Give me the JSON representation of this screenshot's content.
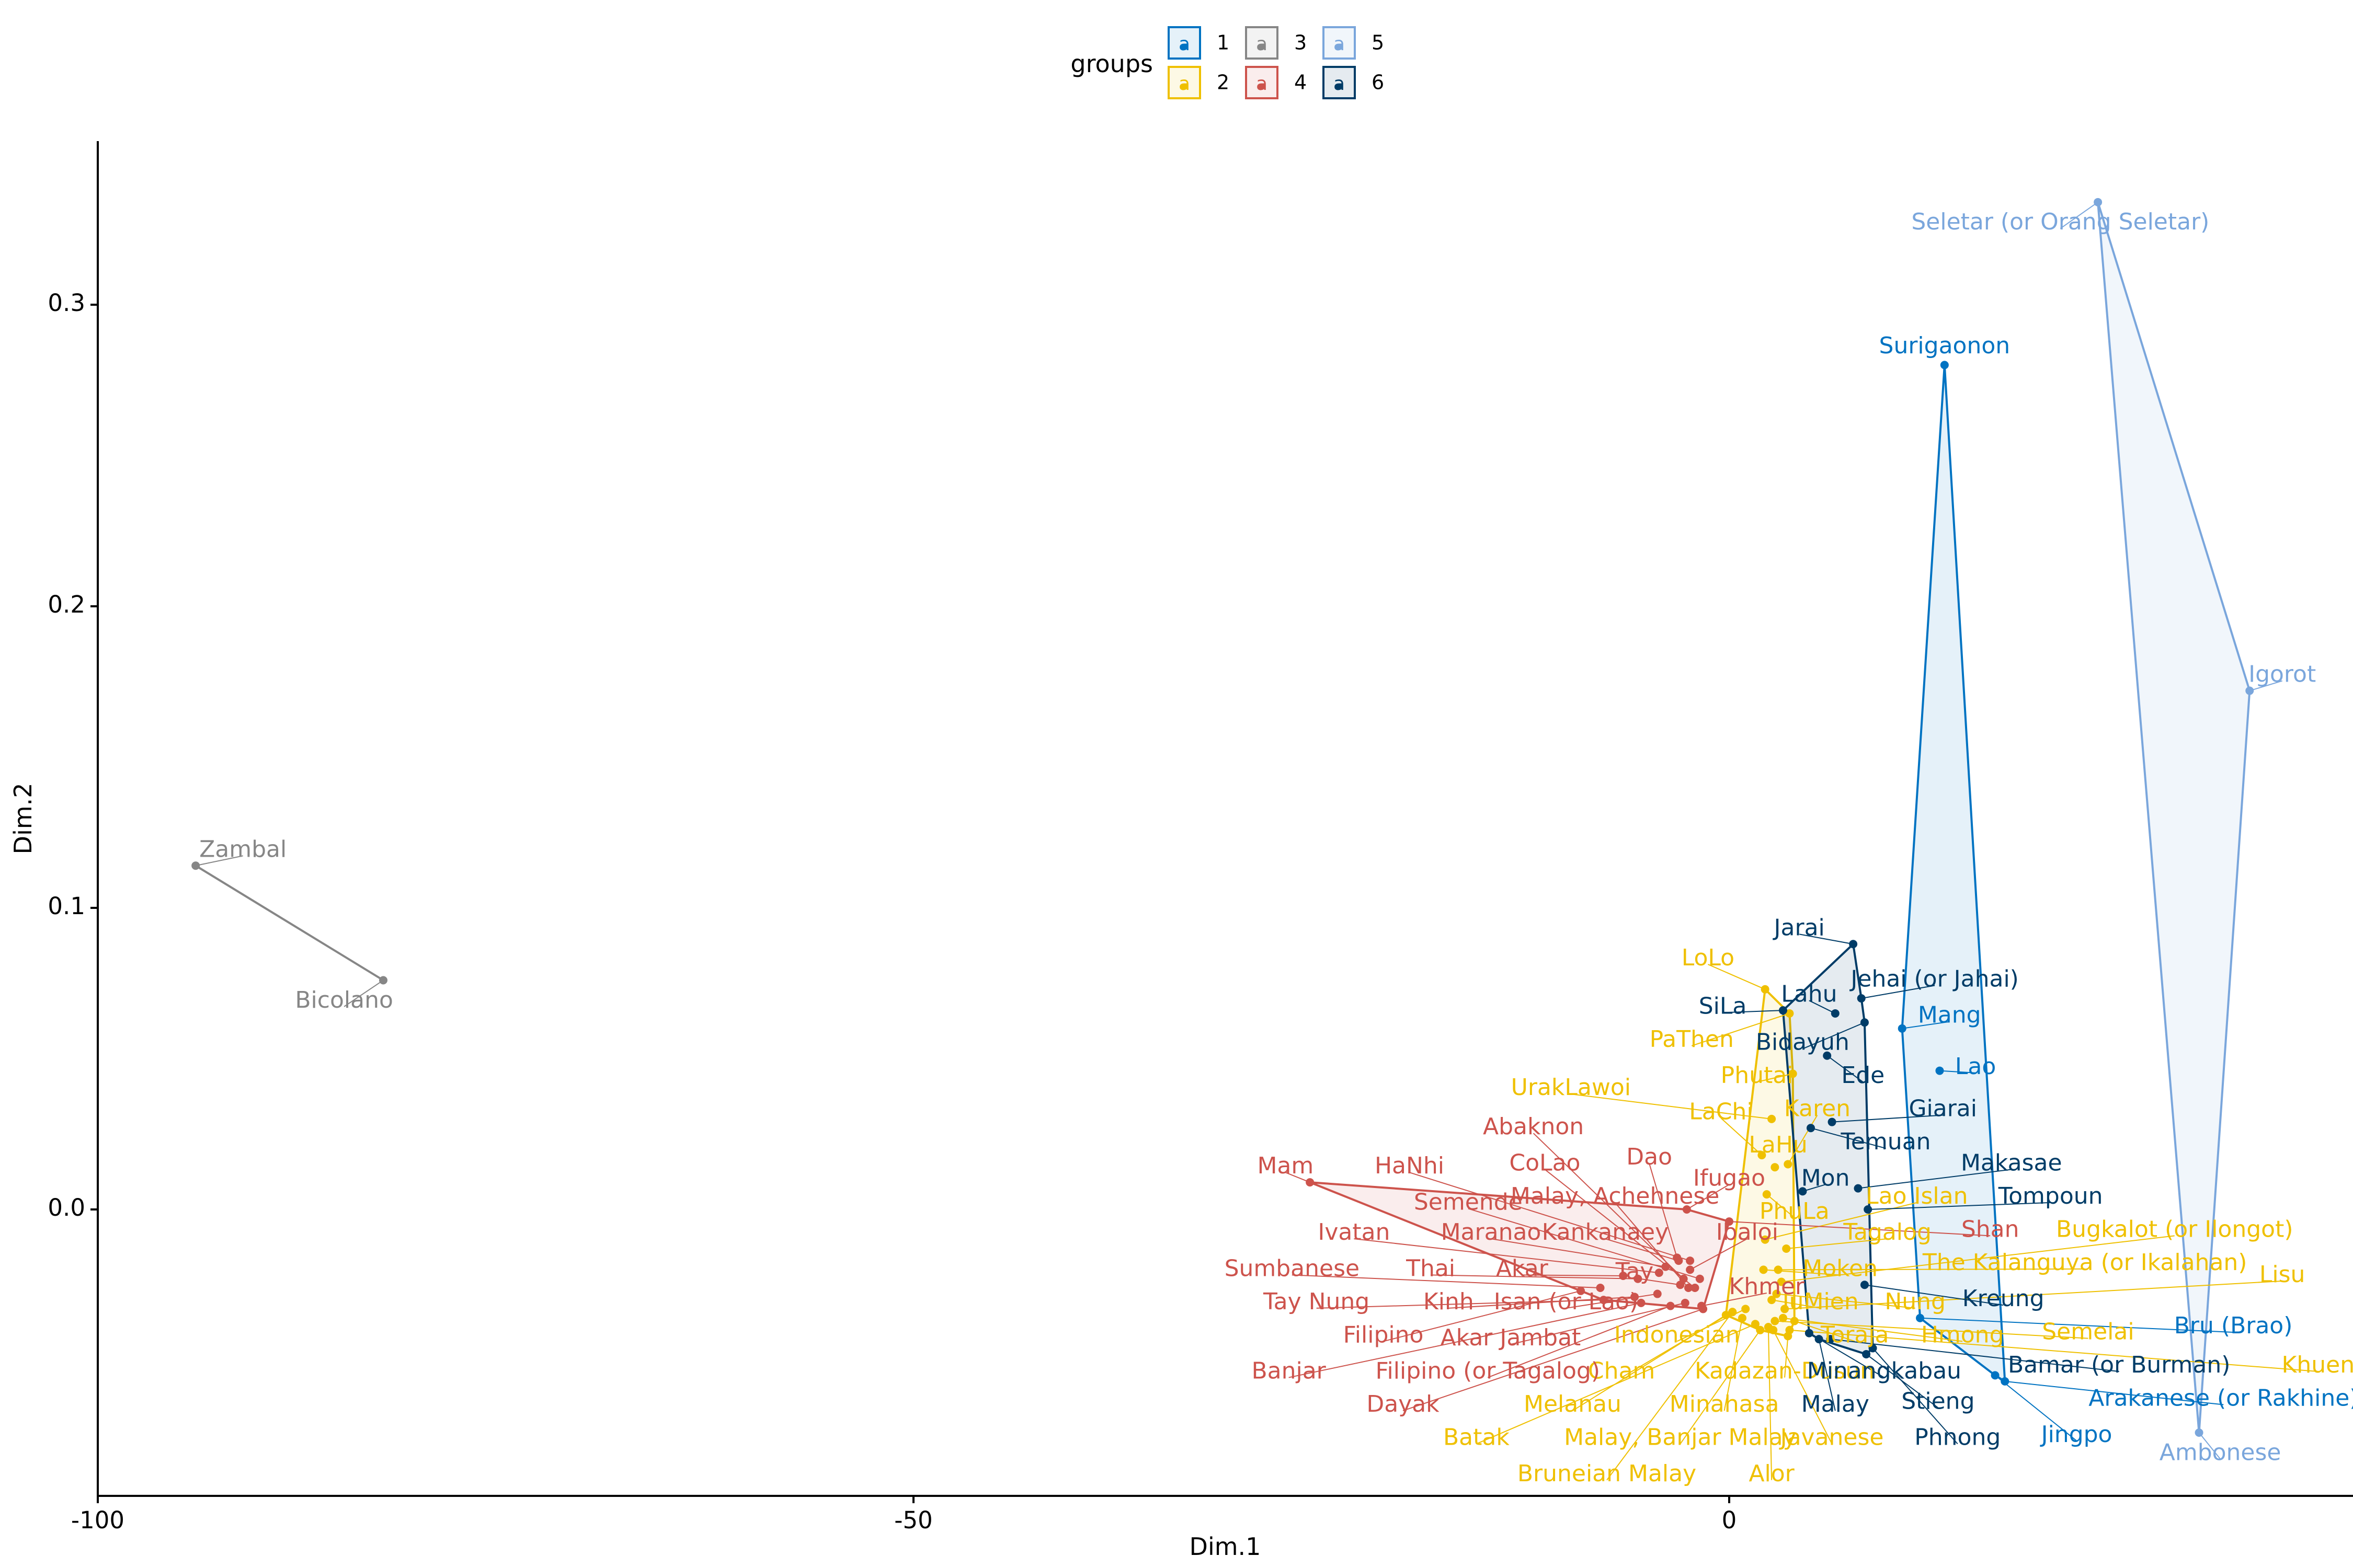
{
  "chart_data": {
    "type": "scatter",
    "xlabel": "Dim.1",
    "ylabel": "Dim.2",
    "xlim": [
      -100,
      38
    ],
    "ylim": [
      -0.095,
      0.355
    ],
    "xticks": [
      -100,
      -50,
      0
    ],
    "yticks": [
      0.0,
      0.1,
      0.2,
      0.3
    ],
    "xtick_labels": [
      "-100",
      "-50",
      "0"
    ],
    "ytick_labels": [
      "0.0",
      "0.1",
      "0.2",
      "0.3"
    ],
    "grid": false,
    "legend": {
      "title": "groups",
      "position": "top",
      "entries": [
        {
          "name": "1",
          "color": "#0073C2"
        },
        {
          "name": "2",
          "color": "#EFC000"
        },
        {
          "name": "3",
          "color": "#868686"
        },
        {
          "name": "4",
          "color": "#CD534C"
        },
        {
          "name": "5",
          "color": "#7AA6DC"
        },
        {
          "name": "6",
          "color": "#003C67"
        }
      ]
    },
    "series": [
      {
        "name": "1",
        "color": "#0073C2",
        "hull": true,
        "points": [
          {
            "label": "Surigaonon",
            "x": 13.2,
            "y": 0.28,
            "lx": 13.2,
            "ly": 0.286
          },
          {
            "label": "Mang",
            "x": 10.6,
            "y": 0.06,
            "lx": 13.5,
            "ly": 0.064
          },
          {
            "label": "Lao",
            "x": 12.9,
            "y": 0.046,
            "lx": 15.1,
            "ly": 0.047
          },
          {
            "label": "Bru (Brao)",
            "x": 11.7,
            "y": -0.036,
            "lx": 30.9,
            "ly": -0.039
          },
          {
            "label": "Arakanese (or Rakhine)",
            "x": 16.9,
            "y": -0.057,
            "lx": 30.3,
            "ly": -0.063
          },
          {
            "label": "Jingpo",
            "x": 16.3,
            "y": -0.055,
            "lx": 21.3,
            "ly": -0.075
          }
        ]
      },
      {
        "name": "2",
        "color": "#EFC000",
        "hull": true,
        "points": [
          {
            "label": "LoLo",
            "x": 2.2,
            "y": 0.073,
            "lx": -1.3,
            "ly": 0.083
          },
          {
            "label": "PaThen",
            "x": 3.7,
            "y": 0.065,
            "lx": -2.3,
            "ly": 0.056
          },
          {
            "label": "Phutai",
            "x": 3.9,
            "y": 0.045,
            "lx": 1.7,
            "ly": 0.044
          },
          {
            "label": "UrakLawoi",
            "x": 2.6,
            "y": 0.03,
            "lx": -9.7,
            "ly": 0.04
          },
          {
            "label": "LaChi",
            "x": 2.0,
            "y": 0.018,
            "lx": -0.5,
            "ly": 0.032
          },
          {
            "label": "LaHu",
            "x": 2.8,
            "y": 0.014,
            "lx": 3.0,
            "ly": 0.021
          },
          {
            "label": "Karen",
            "x": 3.6,
            "y": 0.015,
            "lx": 5.4,
            "ly": 0.033
          },
          {
            "label": "PhuLa",
            "x": 2.3,
            "y": 0.005,
            "lx": 4.0,
            "ly": -0.001
          },
          {
            "label": "Lao Islan",
            "x": 2.2,
            "y": -0.01,
            "lx": 11.5,
            "ly": 0.004
          },
          {
            "label": "Tagalog",
            "x": 3.5,
            "y": -0.013,
            "lx": 9.7,
            "ly": -0.008
          },
          {
            "label": "Moken",
            "x": 2.1,
            "y": -0.02,
            "lx": 6.8,
            "ly": -0.02
          },
          {
            "label": "The Kalanguya (or Ikalahan)",
            "x": 3.0,
            "y": -0.02,
            "lx": 21.8,
            "ly": -0.018
          },
          {
            "label": "Bugkalot (or Ilongot)",
            "x": 3.2,
            "y": -0.024,
            "lx": 27.3,
            "ly": -0.007
          },
          {
            "label": "IuMien",
            "x": 2.6,
            "y": -0.03,
            "lx": 5.6,
            "ly": -0.031
          },
          {
            "label": "Nung",
            "x": 2.9,
            "y": -0.028,
            "lx": 11.4,
            "ly": -0.031
          },
          {
            "label": "Lisu",
            "x": 3.4,
            "y": -0.033,
            "lx": 33.9,
            "ly": -0.022
          },
          {
            "label": "Toraja",
            "x": 4.0,
            "y": -0.037,
            "lx": 7.7,
            "ly": -0.042
          },
          {
            "label": "Hmong",
            "x": 3.3,
            "y": -0.036,
            "lx": 14.3,
            "ly": -0.042
          },
          {
            "label": "Semelai",
            "x": 2.8,
            "y": -0.037,
            "lx": 22.0,
            "ly": -0.041
          },
          {
            "label": "Khuen",
            "x": 3.7,
            "y": -0.04,
            "lx": 36.1,
            "ly": -0.052
          },
          {
            "label": "Indonesian",
            "x": 1.0,
            "y": -0.033,
            "lx": -3.2,
            "ly": -0.042
          },
          {
            "label": "Cham",
            "x": 0.2,
            "y": -0.034,
            "lx": -6.6,
            "ly": -0.054
          },
          {
            "label": "Kadazan-Dusun",
            "x": 3.6,
            "y": -0.042,
            "lx": 3.4,
            "ly": -0.054
          },
          {
            "label": "Melanau",
            "x": -0.2,
            "y": -0.035,
            "lx": -9.6,
            "ly": -0.065
          },
          {
            "label": "Minahasa",
            "x": 0.8,
            "y": -0.036,
            "lx": -0.3,
            "ly": -0.065
          },
          {
            "label": "Batak",
            "x": 1.6,
            "y": -0.038,
            "lx": -15.5,
            "ly": -0.076
          },
          {
            "label": "Malay, Banjar Malay",
            "x": 1.9,
            "y": -0.04,
            "lx": -3.0,
            "ly": -0.076
          },
          {
            "label": "Javanese",
            "x": 2.7,
            "y": -0.04,
            "lx": 6.3,
            "ly": -0.076
          },
          {
            "label": "Bruneian Malay",
            "x": 0.2,
            "y": -0.034,
            "lx": -7.5,
            "ly": -0.088
          },
          {
            "label": "Alor",
            "x": 2.4,
            "y": -0.039,
            "lx": 2.6,
            "ly": -0.088
          }
        ]
      },
      {
        "name": "3",
        "color": "#868686",
        "hull": true,
        "points": [
          {
            "label": "Zambal",
            "x": -94.0,
            "y": 0.114,
            "lx": -91.1,
            "ly": 0.119
          },
          {
            "label": "Bicolano",
            "x": -82.5,
            "y": 0.076,
            "lx": -84.9,
            "ly": 0.069
          }
        ]
      },
      {
        "name": "4",
        "color": "#CD534C",
        "hull": true,
        "points": [
          {
            "label": "Mam",
            "x": -25.7,
            "y": 0.009,
            "lx": -27.2,
            "ly": 0.014
          },
          {
            "label": "HaNhi",
            "x": -2.4,
            "y": -0.017,
            "lx": -19.6,
            "ly": 0.014
          },
          {
            "label": "Abaknon",
            "x": -2.8,
            "y": -0.023,
            "lx": -12.0,
            "ly": 0.027
          },
          {
            "label": "CoLao",
            "x": -2.1,
            "y": -0.026,
            "lx": -11.3,
            "ly": 0.015
          },
          {
            "label": "Dao",
            "x": -3.2,
            "y": -0.016,
            "lx": -4.9,
            "ly": 0.017
          },
          {
            "label": "Semende",
            "x": -1.8,
            "y": -0.023,
            "lx": -16.0,
            "ly": 0.002
          },
          {
            "label": "Malay, Achehnese",
            "x": -2.5,
            "y": -0.026,
            "lx": -7.0,
            "ly": 0.004
          },
          {
            "label": "Ifugao",
            "x": -2.6,
            "y": 0.0,
            "lx": 0.0,
            "ly": 0.01
          },
          {
            "label": "Ivatan",
            "x": -4.3,
            "y": -0.021,
            "lx": -23.0,
            "ly": -0.008
          },
          {
            "label": "Maranao",
            "x": -3.9,
            "y": -0.019,
            "lx": -14.6,
            "ly": -0.008
          },
          {
            "label": "Kankanaey",
            "x": -3.1,
            "y": -0.017,
            "lx": -7.6,
            "ly": -0.008
          },
          {
            "label": "Ibaloi",
            "x": -2.4,
            "y": -0.02,
            "lx": 1.1,
            "ly": -0.008
          },
          {
            "label": "Sumbanese",
            "x": -7.9,
            "y": -0.026,
            "lx": -26.8,
            "ly": -0.02
          },
          {
            "label": "Thai",
            "x": -5.6,
            "y": -0.023,
            "lx": -18.3,
            "ly": -0.02
          },
          {
            "label": "Akar",
            "x": -6.5,
            "y": -0.022,
            "lx": -12.7,
            "ly": -0.02
          },
          {
            "label": "Tay",
            "x": -3.0,
            "y": -0.025,
            "lx": -5.8,
            "ly": -0.021
          },
          {
            "label": "Khmer",
            "x": -1.7,
            "y": -0.032,
            "lx": 2.3,
            "ly": -0.026
          },
          {
            "label": "Tay Nung",
            "x": -7.7,
            "y": -0.03,
            "lx": -25.3,
            "ly": -0.031
          },
          {
            "label": "Kinh",
            "x": -5.8,
            "y": -0.029,
            "lx": -17.2,
            "ly": -0.031
          },
          {
            "label": "Isan (or Lao)",
            "x": -4.4,
            "y": -0.028,
            "lx": -10.0,
            "ly": -0.031
          },
          {
            "label": "Filipino",
            "x": -9.1,
            "y": -0.027,
            "lx": -21.2,
            "ly": -0.042
          },
          {
            "label": "Akar Jambat",
            "x": -2.7,
            "y": -0.031,
            "lx": -13.4,
            "ly": -0.043
          },
          {
            "label": "Banjar",
            "x": -5.4,
            "y": -0.031,
            "lx": -27.0,
            "ly": -0.054
          },
          {
            "label": "Filipino (or Tagalog)",
            "x": -3.6,
            "y": -0.032,
            "lx": -14.8,
            "ly": -0.054
          },
          {
            "label": "Dayak",
            "x": -1.6,
            "y": -0.033,
            "lx": -20.0,
            "ly": -0.065
          },
          {
            "label": "Shan",
            "x": 0.0,
            "y": -0.004,
            "lx": 16.0,
            "ly": -0.007
          }
        ]
      },
      {
        "name": "5",
        "color": "#7AA6DC",
        "hull": true,
        "points": [
          {
            "label": "Seletar (or Orang Seletar)",
            "x": 22.6,
            "y": 0.334,
            "lx": 20.3,
            "ly": 0.327
          },
          {
            "label": "Igorot",
            "x": 31.9,
            "y": 0.172,
            "lx": 33.9,
            "ly": 0.177
          },
          {
            "label": "Ambonese",
            "x": 28.8,
            "y": -0.074,
            "lx": 30.1,
            "ly": -0.081
          }
        ]
      },
      {
        "name": "6",
        "color": "#003C67",
        "hull": true,
        "points": [
          {
            "label": "Jarai",
            "x": 7.6,
            "y": 0.088,
            "lx": 4.3,
            "ly": 0.093
          },
          {
            "label": "Jehai (or Jahai)",
            "x": 8.1,
            "y": 0.07,
            "lx": 12.6,
            "ly": 0.076
          },
          {
            "label": "Lahu",
            "x": 6.5,
            "y": 0.065,
            "lx": 4.9,
            "ly": 0.071
          },
          {
            "label": "SiLa",
            "x": 3.3,
            "y": 0.066,
            "lx": -0.4,
            "ly": 0.067
          },
          {
            "label": "Bidayuh",
            "x": 8.3,
            "y": 0.062,
            "lx": 4.5,
            "ly": 0.055
          },
          {
            "label": "Ede",
            "x": 6.0,
            "y": 0.051,
            "lx": 8.2,
            "ly": 0.044
          },
          {
            "label": "Giarai",
            "x": 6.3,
            "y": 0.029,
            "lx": 13.1,
            "ly": 0.033
          },
          {
            "label": "Temuan",
            "x": 5.0,
            "y": 0.027,
            "lx": 9.6,
            "ly": 0.022
          },
          {
            "label": "Mon",
            "x": 4.5,
            "y": 0.006,
            "lx": 5.9,
            "ly": 0.01
          },
          {
            "label": "Makasae",
            "x": 7.9,
            "y": 0.007,
            "lx": 17.3,
            "ly": 0.015
          },
          {
            "label": "Tompoun",
            "x": 8.5,
            "y": 0.0,
            "lx": 19.7,
            "ly": 0.004
          },
          {
            "label": "Kreung",
            "x": 8.3,
            "y": -0.025,
            "lx": 16.8,
            "ly": -0.03
          },
          {
            "label": "Minangkabau",
            "x": 4.9,
            "y": -0.041,
            "lx": 9.5,
            "ly": -0.054
          },
          {
            "label": "Bamar (or Burman)",
            "x": 6.2,
            "y": -0.043,
            "lx": 23.9,
            "ly": -0.052
          },
          {
            "label": "Stieng",
            "x": 8.4,
            "y": -0.048,
            "lx": 12.8,
            "ly": -0.064
          },
          {
            "label": "Malay",
            "x": 5.5,
            "y": -0.043,
            "lx": 6.5,
            "ly": -0.065
          },
          {
            "label": "Phnong",
            "x": 8.8,
            "y": -0.046,
            "lx": 14.0,
            "ly": -0.076
          }
        ]
      }
    ]
  }
}
